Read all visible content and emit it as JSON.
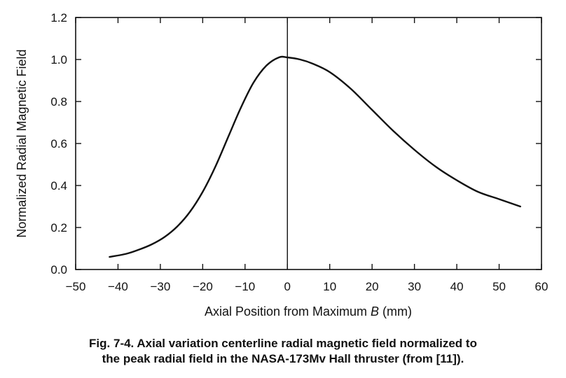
{
  "chart_data": {
    "type": "line",
    "title": "",
    "xlabel_prefix": "Axial Position from Maximum ",
    "xlabel_var": "B",
    "xlabel_suffix": " (mm)",
    "ylabel": "Normalized Radial Magnetic Field",
    "xlim": [
      -50,
      60
    ],
    "ylim": [
      0.0,
      1.2
    ],
    "x_ticks": [
      -50,
      -40,
      -30,
      -20,
      -10,
      0,
      10,
      20,
      30,
      40,
      50,
      60
    ],
    "x_tick_labels": [
      "−50",
      "−40",
      "−30",
      "−20",
      "−10",
      "0",
      "10",
      "20",
      "30",
      "40",
      "50",
      "60"
    ],
    "y_ticks": [
      0.0,
      0.2,
      0.4,
      0.6,
      0.8,
      1.0,
      1.2
    ],
    "y_tick_labels": [
      "0.0",
      "0.2",
      "0.4",
      "0.6",
      "0.8",
      "1.0",
      "1.2"
    ],
    "vertical_line_x": 0,
    "grid": false,
    "series": [
      {
        "x": [
          -42,
          -38,
          -35,
          -32,
          -29,
          -26,
          -23,
          -20,
          -17,
          -14,
          -11,
          -8,
          -5,
          -2,
          0,
          3,
          6,
          10,
          15,
          20,
          25,
          30,
          35,
          40,
          45,
          50,
          55
        ],
        "y": [
          0.06,
          0.075,
          0.095,
          0.12,
          0.155,
          0.205,
          0.275,
          0.37,
          0.49,
          0.63,
          0.77,
          0.89,
          0.97,
          1.01,
          1.01,
          1.0,
          0.98,
          0.94,
          0.86,
          0.76,
          0.66,
          0.57,
          0.49,
          0.425,
          0.37,
          0.335,
          0.3
        ]
      }
    ]
  },
  "caption": {
    "line1": "Fig. 7-4. Axial variation centerline radial magnetic field normalized to",
    "line2": "the peak radial field in the NASA-173Mv Hall thruster (from [11])."
  }
}
